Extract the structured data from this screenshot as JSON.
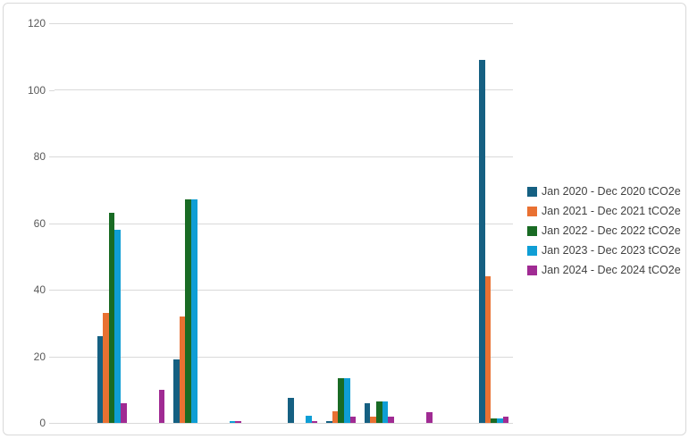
{
  "chart_data": {
    "type": "bar",
    "title": "",
    "xlabel": "",
    "ylabel": "",
    "ylim": [
      0,
      120
    ],
    "yticks": [
      120,
      100,
      80,
      60,
      40,
      20,
      0
    ],
    "grid": true,
    "legend_position": "right",
    "x_axis_labels_visible": false,
    "categories": [
      "",
      "",
      "",
      "",
      "",
      "",
      "",
      "",
      "",
      "",
      "",
      ""
    ],
    "series": [
      {
        "name": "Jan 2020 - Dec 2020 tCO2e",
        "color": "#156082",
        "values": [
          0,
          26,
          0,
          19,
          0,
          0,
          7.6,
          0.5,
          5.8,
          0,
          0,
          109
        ]
      },
      {
        "name": "Jan 2021 - Dec 2021 tCO2e",
        "color": "#E97132",
        "values": [
          0,
          33,
          0,
          32,
          0,
          0,
          0,
          3.4,
          2,
          0,
          0,
          44
        ]
      },
      {
        "name": "Jan 2022 - Dec 2022 tCO2e",
        "color": "#196B24",
        "values": [
          0,
          63,
          0,
          67,
          0,
          0,
          0,
          13.4,
          6.4,
          0,
          0,
          1.3
        ]
      },
      {
        "name": "Jan 2023 - Dec 2023 tCO2e",
        "color": "#0F9ED5",
        "values": [
          0,
          58,
          0,
          67,
          0.6,
          0,
          2.2,
          13.4,
          6.5,
          0,
          0,
          1.3
        ]
      },
      {
        "name": "Jan 2024 - Dec 2024 tCO2e",
        "color": "#A02B93",
        "values": [
          0,
          6,
          10,
          0,
          0.6,
          0,
          0.5,
          2,
          2,
          3.3,
          0,
          2
        ]
      }
    ],
    "colors": {
      "gridline": "#D9D9D9",
      "axis_text": "#595959",
      "legend_text": "#404040",
      "frame_border": "#D9D9D9",
      "background": "#FFFFFF"
    }
  }
}
